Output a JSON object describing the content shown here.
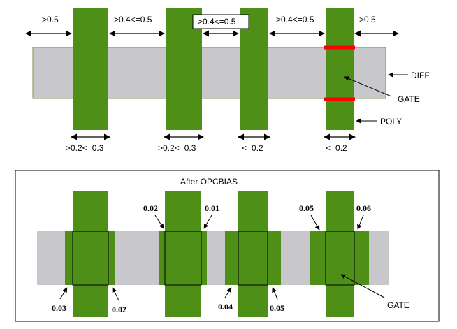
{
  "top": {
    "spacing_labels": [
      ">0.5",
      ">0.4<=0.5",
      ">0.4<=0.5",
      ">0.4<=0.5",
      ">0.5"
    ],
    "width_labels": [
      ">0.2<=0.3",
      ">0.2<=0.3",
      "<=0.2",
      "<=0.2"
    ],
    "diff_label": "DIFF",
    "gate_label": "GATE",
    "poly_label": "POLY"
  },
  "bottom": {
    "title": "After OPCBIAS",
    "bias_labels": [
      "0.02",
      "0.01",
      "0.05",
      "0.06",
      "0.03",
      "0.02",
      "0.04",
      "0.05"
    ],
    "gate_label": "GATE"
  },
  "colors": {
    "poly": "#4e8f18",
    "diff": "#c8c8cc",
    "gate_marker": "#ff0000"
  }
}
